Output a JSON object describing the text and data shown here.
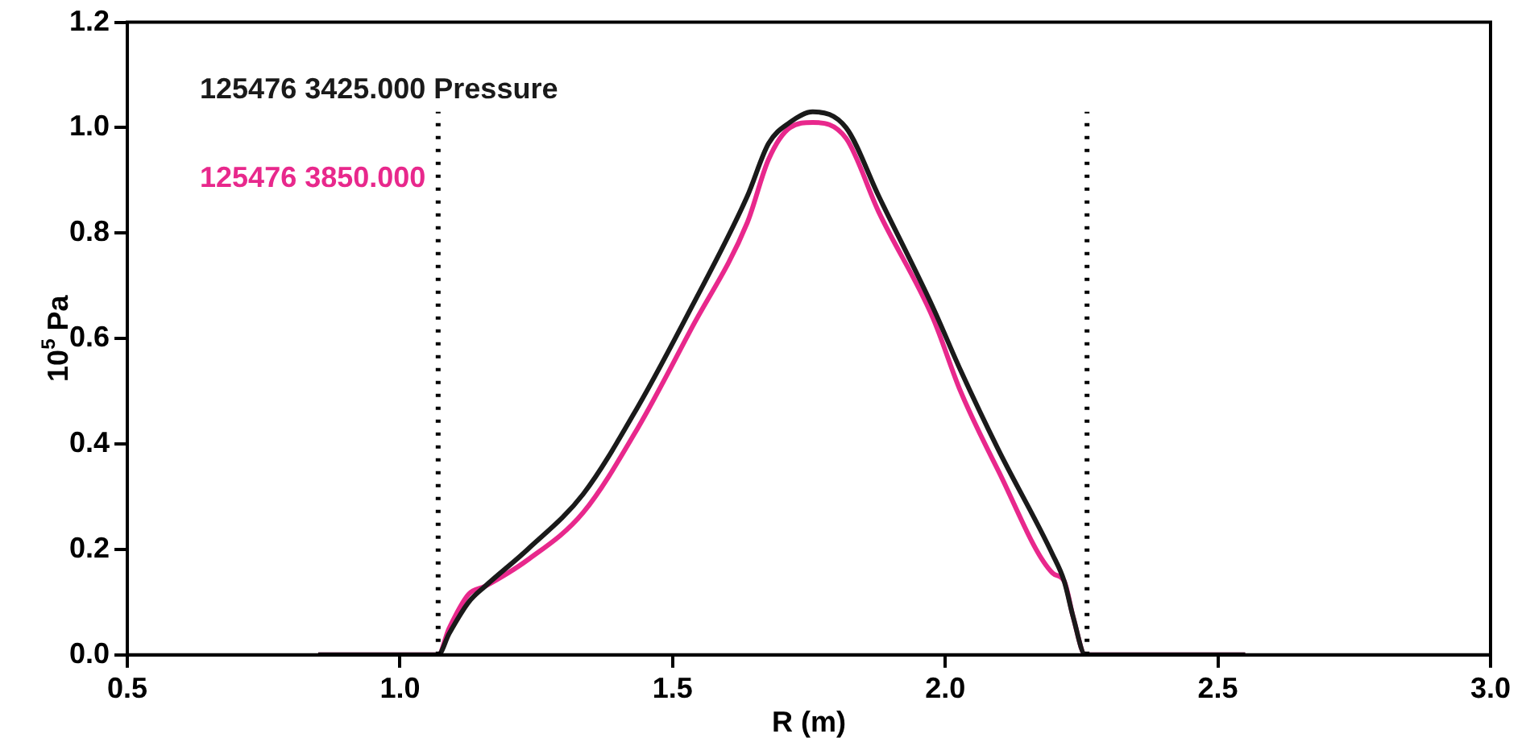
{
  "chart_data": {
    "type": "line",
    "xlabel": "R (m)",
    "ylabel": "10$^{5}$ Pa",
    "x": [
      0.85,
      1.07,
      1.09,
      1.126,
      1.156,
      1.234,
      1.336,
      1.436,
      1.535,
      1.637,
      1.676,
      1.715,
      1.757,
      1.818,
      1.878,
      1.977,
      2.028,
      2.097,
      2.197,
      2.218,
      2.235,
      2.257,
      2.55
    ],
    "series": [
      {
        "name": "125476 3425.000 Pressure",
        "color": "#1a1a1a",
        "values": [
          0,
          0,
          0.04,
          0.1,
          0.13,
          0.2,
          0.305,
          0.47,
          0.66,
          0.87,
          0.97,
          1.01,
          1.03,
          1.0,
          0.87,
          0.66,
          0.54,
          0.39,
          0.19,
          0.14,
          0.07,
          0,
          0
        ]
      },
      {
        "name": "125476 3850.000",
        "color": "#e8288c",
        "values": [
          0,
          0,
          0.05,
          0.115,
          0.13,
          0.18,
          0.27,
          0.43,
          0.62,
          0.82,
          0.94,
          1.0,
          1.01,
          0.98,
          0.84,
          0.64,
          0.5,
          0.35,
          0.155,
          0.14,
          0.07,
          0,
          0
        ]
      }
    ],
    "xlim": [
      0.5,
      3.0
    ],
    "xticks": [
      {
        "value": 0.5,
        "label": "0.5"
      },
      {
        "value": 1,
        "label": "1.0"
      },
      {
        "value": 1.5,
        "label": "1.5"
      },
      {
        "value": 2,
        "label": "2.0"
      },
      {
        "value": 2.5,
        "label": "2.5"
      },
      {
        "value": 3,
        "label": "3.0"
      }
    ],
    "ylim": [
      0,
      1.2
    ],
    "yticks": [
      {
        "value": 0,
        "label": "0.0"
      },
      {
        "value": 0.2,
        "label": "0.2"
      },
      {
        "value": 0.4,
        "label": "0.4"
      },
      {
        "value": 0.6,
        "label": "0.6"
      },
      {
        "value": 0.8,
        "label": "0.8"
      },
      {
        "value": 1,
        "label": "1.0"
      },
      {
        "value": 1.2,
        "label": "1.2"
      }
    ],
    "ref_lines": [
      {
        "axis": "x",
        "value": 1.07,
        "line_style": "dotted",
        "color": "#000000"
      },
      {
        "axis": "x",
        "value": 2.26,
        "line_style": "dotted",
        "color": "#000000"
      }
    ],
    "legend": "top left",
    "grid": false,
    "marker": "none",
    "line_style": "solid"
  }
}
